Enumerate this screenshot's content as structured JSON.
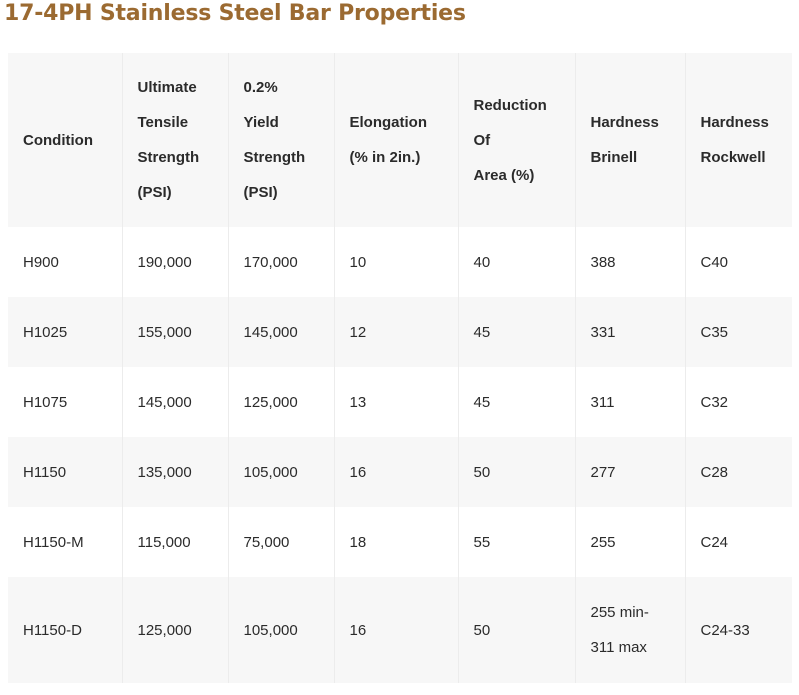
{
  "title": "17-4PH Stainless Steel Bar Properties",
  "table": {
    "headers": [
      [
        "Condition"
      ],
      [
        "Ultimate",
        "Tensile",
        "Strength",
        "(PSI)"
      ],
      [
        "0.2%",
        "Yield",
        "Strength",
        "(PSI)"
      ],
      [
        "Elongation",
        "(% in 2in.)"
      ],
      [
        "Reduction",
        "Of",
        "Area (%)"
      ],
      [
        "Hardness",
        "Brinell"
      ],
      [
        "Hardness",
        "Rockwell"
      ]
    ],
    "rows": [
      [
        "H900",
        "190,000",
        "170,000",
        "10",
        "40",
        "388",
        "C40"
      ],
      [
        "H1025",
        "155,000",
        "145,000",
        "12",
        "45",
        "331",
        "C35"
      ],
      [
        "H1075",
        "145,000",
        "125,000",
        "13",
        "45",
        "311",
        "C32"
      ],
      [
        "H1150",
        "135,000",
        "105,000",
        "16",
        "50",
        "277",
        "C28"
      ],
      [
        "H1150-M",
        "115,000",
        "75,000",
        "18",
        "55",
        "255",
        "C24"
      ],
      [
        "H1150-D",
        "125,000",
        "105,000",
        "16",
        "50",
        "255 min-\n311 max",
        "C24-33"
      ]
    ]
  },
  "colors": {
    "title": "#9b6a31",
    "text": "#2b2b2b",
    "stripe": "#f7f7f7",
    "background": "#ffffff"
  }
}
